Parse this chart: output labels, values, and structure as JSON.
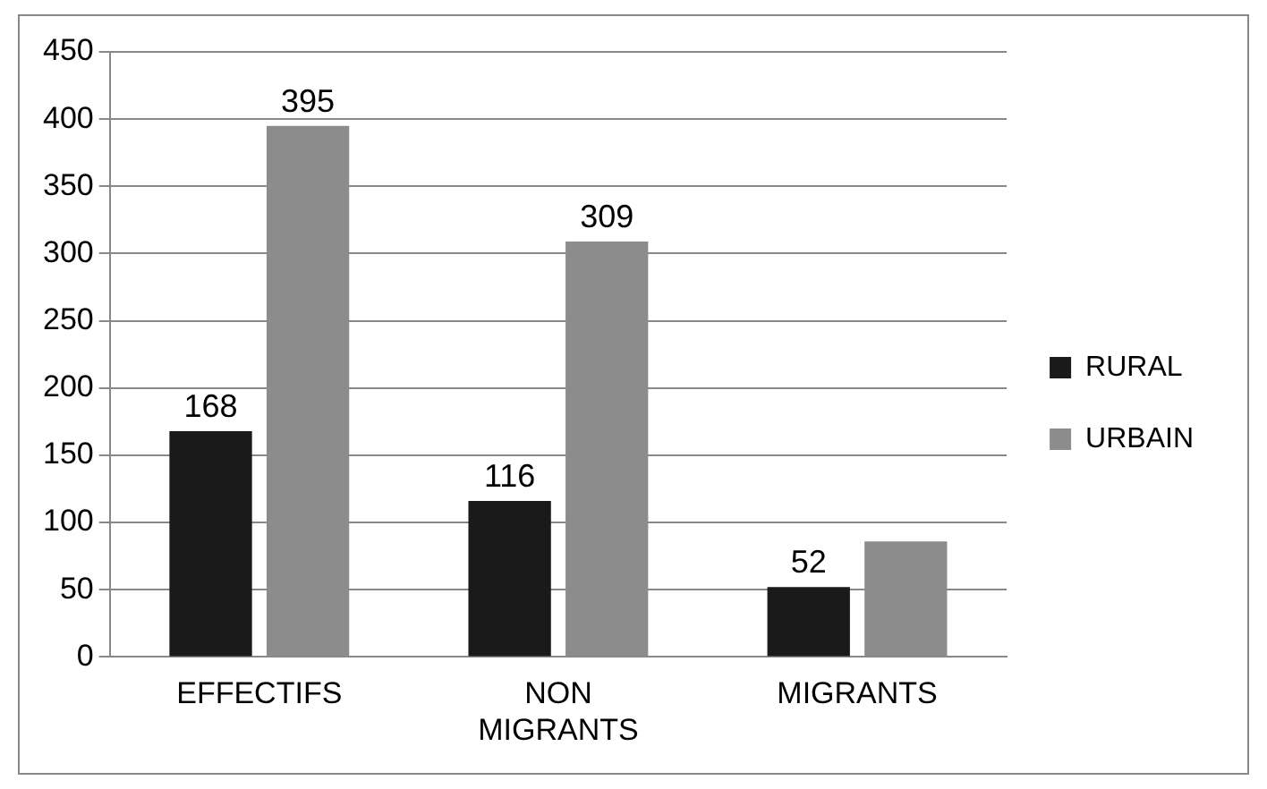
{
  "chart_data": {
    "type": "bar",
    "categories": [
      "EFFECTIFS",
      "NON MIGRANTS",
      "MIGRANTS"
    ],
    "series": [
      {
        "name": "RURAL",
        "color": "#1a1a1a",
        "values": [
          168,
          116,
          52
        ],
        "value_labels": [
          "168",
          "116",
          "52"
        ]
      },
      {
        "name": "URBAIN",
        "color": "#8c8c8c",
        "values": [
          395,
          309,
          86
        ],
        "value_labels": [
          "395",
          "309",
          null
        ]
      }
    ],
    "ylim": [
      0,
      450
    ],
    "yticks": [
      0,
      50,
      100,
      150,
      200,
      250,
      300,
      350,
      400,
      450
    ],
    "grid": "y",
    "legend": "right"
  }
}
